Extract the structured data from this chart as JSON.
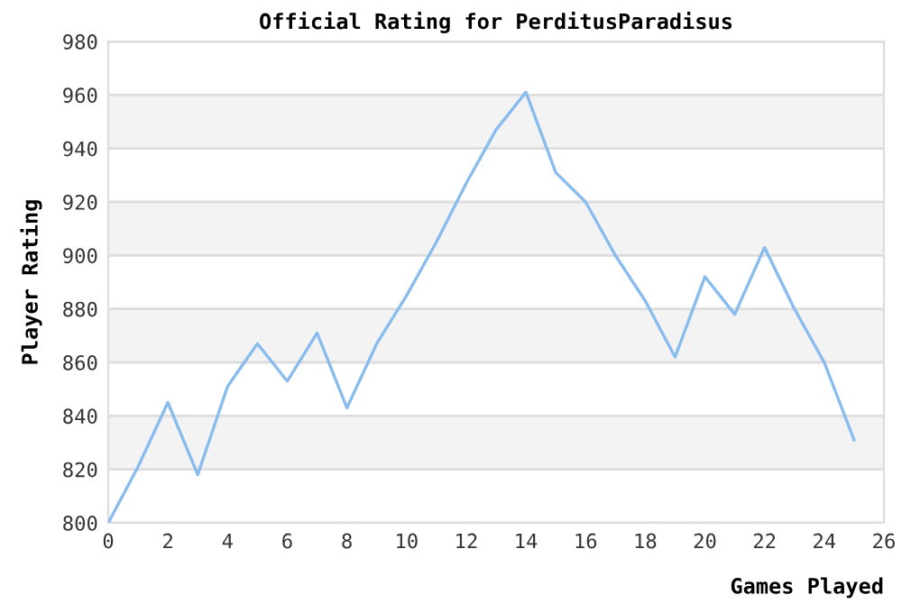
{
  "chart_data": {
    "type": "line",
    "title": "Official Rating for PerditusParadisus",
    "xlabel": "Games Played",
    "ylabel": "Player Rating",
    "x": [
      0,
      1,
      2,
      3,
      4,
      5,
      6,
      7,
      8,
      9,
      10,
      11,
      12,
      13,
      14,
      15,
      16,
      17,
      18,
      19,
      20,
      21,
      22,
      23,
      24,
      25
    ],
    "series": [
      {
        "color": "#88bbee",
        "values": [
          800,
          821,
          845,
          818,
          851,
          867,
          853,
          871,
          843,
          867,
          885,
          905,
          927,
          947,
          961,
          931,
          920,
          900,
          883,
          862,
          892,
          878,
          903,
          880,
          860,
          831
        ]
      }
    ],
    "xlim": [
      0,
      26
    ],
    "xticks": [
      0,
      2,
      4,
      6,
      8,
      10,
      12,
      14,
      16,
      18,
      20,
      22,
      24,
      26
    ],
    "ylim": [
      800,
      980
    ],
    "yticks": [
      800,
      820,
      840,
      860,
      880,
      900,
      920,
      940,
      960,
      980
    ],
    "grid": "y",
    "marker": "none",
    "line_style": "solid"
  }
}
